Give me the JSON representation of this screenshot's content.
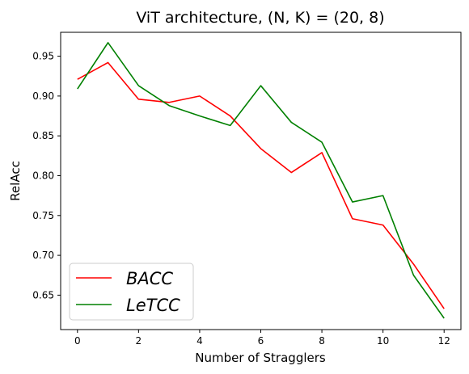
{
  "chart_data": {
    "type": "line",
    "title": "ViT architecture, (N, K) = (20, 8)",
    "xlabel": "Number of Stragglers",
    "ylabel": "RelAcc",
    "xlim": [
      -0.55,
      12.55
    ],
    "ylim": [
      0.6068,
      0.98
    ],
    "xticks": [
      0,
      2,
      4,
      6,
      8,
      10,
      12
    ],
    "yticks": [
      0.65,
      0.7,
      0.75,
      0.8,
      0.85,
      0.9,
      0.95
    ],
    "ytick_labels": [
      "0.65",
      "0.70",
      "0.75",
      "0.80",
      "0.85",
      "0.90",
      "0.95"
    ],
    "legend_position": "lower-left",
    "x": [
      0,
      1,
      2,
      3,
      4,
      5,
      6,
      7,
      8,
      9,
      10,
      11,
      12
    ],
    "series": [
      {
        "name": "BACC",
        "color": "#ff0000",
        "values": [
          0.921,
          0.942,
          0.896,
          0.892,
          0.9,
          0.875,
          0.834,
          0.804,
          0.829,
          0.746,
          0.738,
          0.689,
          0.633
        ]
      },
      {
        "name": "LeTCC",
        "color": "#008000",
        "values": [
          0.909,
          0.967,
          0.913,
          0.888,
          0.875,
          0.863,
          0.913,
          0.867,
          0.842,
          0.767,
          0.775,
          0.675,
          0.621
        ]
      }
    ]
  }
}
